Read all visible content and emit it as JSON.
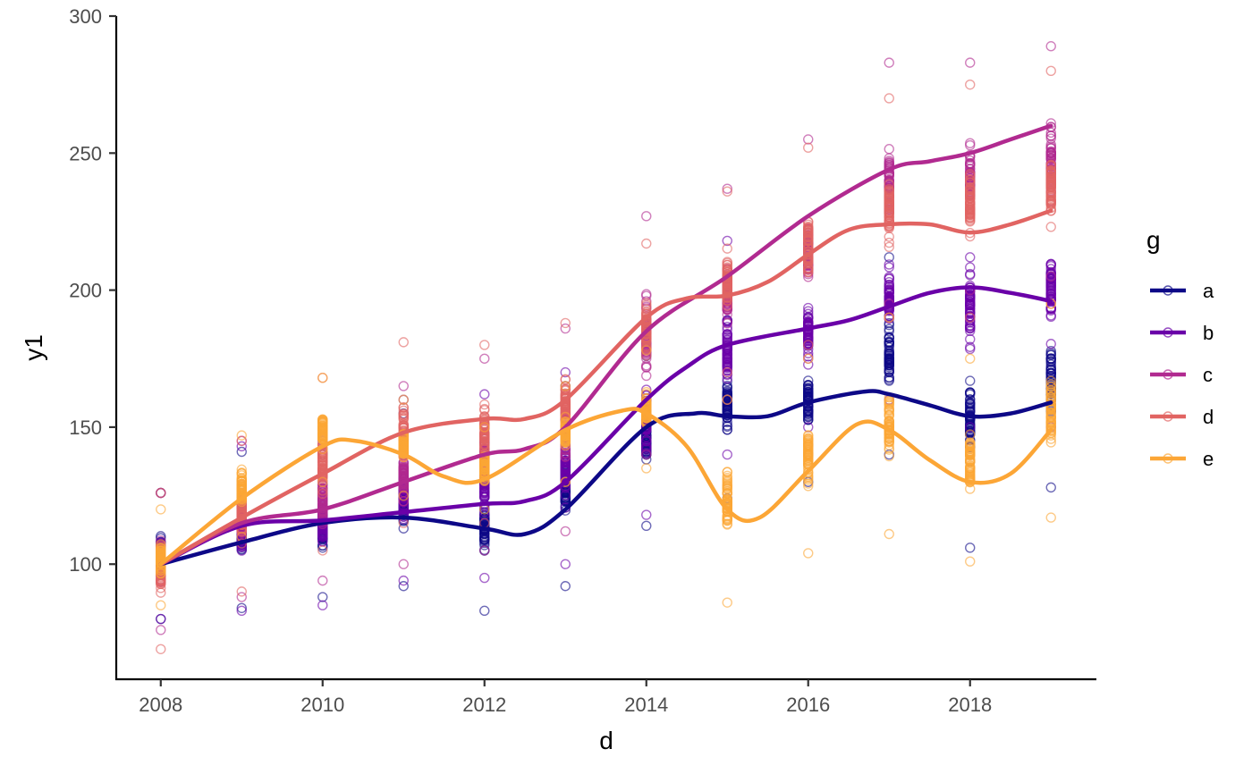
{
  "chart_data": {
    "type": "scatter",
    "title": "",
    "xlabel": "d",
    "ylabel": "y1",
    "xlim": [
      2007.45,
      2019.55
    ],
    "ylim": [
      58,
      300
    ],
    "grid": false,
    "legend_position": "right",
    "legend_title": "g",
    "x_ticks": [
      2008,
      2010,
      2012,
      2014,
      2016,
      2018
    ],
    "y_ticks": [
      100,
      150,
      200,
      250,
      300
    ],
    "x_tick_labels": [
      "2008",
      "2010",
      "2012",
      "2014",
      "2016",
      "2018"
    ],
    "y_tick_labels": [
      "100",
      "150",
      "200",
      "250",
      "300"
    ],
    "x": [
      2008,
      2009,
      2010,
      2011,
      2012,
      2013,
      2014,
      2015,
      2016,
      2017,
      2018,
      2019
    ],
    "series": [
      {
        "name": "a",
        "color": "#0D0887",
        "smooth": [
          [
            2008,
            100
          ],
          [
            2009,
            108
          ],
          [
            2010,
            115
          ],
          [
            2011,
            117
          ],
          [
            2012,
            113
          ],
          [
            2012.5,
            111
          ],
          [
            2013,
            120
          ],
          [
            2014,
            150
          ],
          [
            2014.6,
            155
          ],
          [
            2015,
            154
          ],
          [
            2015.5,
            154
          ],
          [
            2016,
            159
          ],
          [
            2016.7,
            163
          ],
          [
            2017,
            162
          ],
          [
            2017.5,
            158
          ],
          [
            2018,
            154
          ],
          [
            2018.5,
            155
          ],
          [
            2019,
            159
          ]
        ],
        "ranges": [
          [
            80,
            126
          ],
          [
            84,
            141
          ],
          [
            88,
            140
          ],
          [
            92,
            155
          ],
          [
            83,
            144
          ],
          [
            92,
            165
          ],
          [
            114,
            176
          ],
          [
            124,
            189
          ],
          [
            130,
            190
          ],
          [
            140,
            212
          ],
          [
            106,
            200
          ],
          [
            128,
            206
          ]
        ]
      },
      {
        "name": "b",
        "color": "#6A00A8",
        "smooth": [
          [
            2008,
            100
          ],
          [
            2009,
            114
          ],
          [
            2010,
            116
          ],
          [
            2011,
            119
          ],
          [
            2012,
            122
          ],
          [
            2012.5,
            123
          ],
          [
            2013,
            130
          ],
          [
            2014,
            160
          ],
          [
            2014.5,
            172
          ],
          [
            2015,
            180
          ],
          [
            2016,
            186
          ],
          [
            2016.5,
            189
          ],
          [
            2017,
            194
          ],
          [
            2017.5,
            199
          ],
          [
            2018,
            201
          ],
          [
            2018.5,
            199
          ],
          [
            2019,
            196
          ]
        ],
        "ranges": [
          [
            80,
            126
          ],
          [
            83,
            143
          ],
          [
            85,
            145
          ],
          [
            94,
            160
          ],
          [
            95,
            162
          ],
          [
            100,
            170
          ],
          [
            118,
            188
          ],
          [
            140,
            218
          ],
          [
            150,
            220
          ],
          [
            160,
            232
          ],
          [
            150,
            238
          ],
          [
            150,
            250
          ]
        ]
      },
      {
        "name": "c",
        "color": "#B12A90",
        "smooth": [
          [
            2008,
            100
          ],
          [
            2009,
            115
          ],
          [
            2010,
            120
          ],
          [
            2011,
            130
          ],
          [
            2012,
            140
          ],
          [
            2012.5,
            142
          ],
          [
            2013,
            150
          ],
          [
            2014,
            185
          ],
          [
            2015,
            205
          ],
          [
            2016,
            227
          ],
          [
            2017,
            244
          ],
          [
            2017.5,
            247
          ],
          [
            2018,
            250
          ],
          [
            2018.5,
            255
          ],
          [
            2019,
            260
          ]
        ],
        "ranges": [
          [
            76,
            126
          ],
          [
            88,
            145
          ],
          [
            94,
            152
          ],
          [
            100,
            165
          ],
          [
            105,
            175
          ],
          [
            112,
            186
          ],
          [
            140,
            227
          ],
          [
            160,
            237
          ],
          [
            175,
            255
          ],
          [
            195,
            283
          ],
          [
            200,
            283
          ],
          [
            205,
            289
          ]
        ]
      },
      {
        "name": "d",
        "color": "#E16462",
        "smooth": [
          [
            2008,
            100
          ],
          [
            2009,
            117
          ],
          [
            2010,
            133
          ],
          [
            2011,
            148
          ],
          [
            2012,
            153
          ],
          [
            2012.5,
            153
          ],
          [
            2013,
            160
          ],
          [
            2014,
            190
          ],
          [
            2014.5,
            197
          ],
          [
            2015,
            198
          ],
          [
            2015.5,
            203
          ],
          [
            2016,
            213
          ],
          [
            2016.5,
            222
          ],
          [
            2017,
            224
          ],
          [
            2017.5,
            224
          ],
          [
            2018,
            221
          ],
          [
            2018.5,
            224
          ],
          [
            2019,
            229
          ]
        ],
        "ranges": [
          [
            69,
            126
          ],
          [
            90,
            145
          ],
          [
            105,
            168
          ],
          [
            115,
            181
          ],
          [
            115,
            180
          ],
          [
            130,
            188
          ],
          [
            155,
            217
          ],
          [
            170,
            236
          ],
          [
            180,
            252
          ],
          [
            190,
            270
          ],
          [
            190,
            275
          ],
          [
            195,
            280
          ]
        ]
      },
      {
        "name": "e",
        "color": "#FCA636",
        "smooth": [
          [
            2008,
            100
          ],
          [
            2009,
            124
          ],
          [
            2010,
            143
          ],
          [
            2010.4,
            145
          ],
          [
            2011,
            140
          ],
          [
            2011.5,
            132
          ],
          [
            2012,
            131
          ],
          [
            2013,
            149
          ],
          [
            2013.7,
            156
          ],
          [
            2014,
            155
          ],
          [
            2014.5,
            143
          ],
          [
            2015,
            120
          ],
          [
            2015.4,
            117
          ],
          [
            2016,
            134
          ],
          [
            2016.6,
            151
          ],
          [
            2017,
            149
          ],
          [
            2017.5,
            138
          ],
          [
            2018,
            130
          ],
          [
            2018.5,
            133
          ],
          [
            2019,
            149
          ]
        ],
        "ranges": [
          [
            85,
            120
          ],
          [
            110,
            147
          ],
          [
            130,
            168
          ],
          [
            125,
            160
          ],
          [
            120,
            150
          ],
          [
            130,
            165
          ],
          [
            135,
            178
          ],
          [
            86,
            160
          ],
          [
            104,
            175
          ],
          [
            111,
            190
          ],
          [
            101,
            175
          ],
          [
            117,
            195
          ]
        ]
      }
    ]
  }
}
